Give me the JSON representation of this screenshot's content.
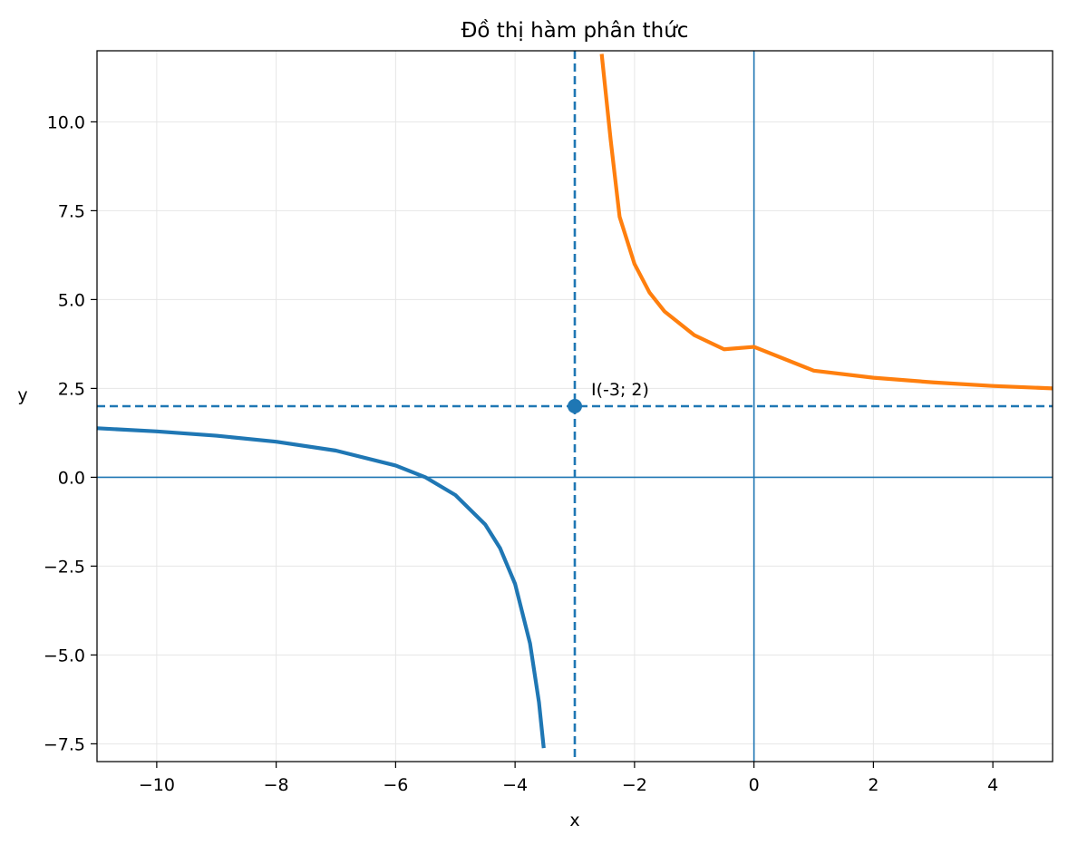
{
  "chart_data": {
    "type": "line",
    "title": "Đồ thị hàm phân thức",
    "xlabel": "x",
    "ylabel": "y",
    "xlim": [
      -11,
      5
    ],
    "ylim": [
      -8,
      12
    ],
    "xticks": [
      -10,
      -8,
      -6,
      -4,
      -2,
      0,
      2,
      4
    ],
    "xtick_labels": [
      "−10",
      "−8",
      "−6",
      "−4",
      "−2",
      "0",
      "2",
      "4"
    ],
    "yticks": [
      -7.5,
      -5.0,
      -2.5,
      0.0,
      2.5,
      5.0,
      7.5,
      10.0
    ],
    "ytick_labels": [
      "−7.5",
      "−5.0",
      "−2.5",
      "0.0",
      "2.5",
      "5.0",
      "7.5",
      "10.0"
    ],
    "grid": true,
    "series": [
      {
        "branch": "left",
        "color": "#1f77b4",
        "x": [
          -11,
          -10,
          -9,
          -8,
          -7,
          -6,
          -5.5,
          -5,
          -4.5,
          -4.25,
          -4,
          -3.75,
          -3.6,
          -3.52
        ],
        "y": [
          1.38,
          1.29,
          1.17,
          1.0,
          0.75,
          0.33,
          0.0,
          -0.5,
          -1.33,
          -2.0,
          -3.0,
          -4.67,
          -6.33,
          -7.62
        ]
      },
      {
        "branch": "right",
        "color": "#ff7f0e",
        "x": [
          -2.55,
          -2.4,
          -2.25,
          -2,
          -1.75,
          -1.5,
          -1,
          -0.5,
          0,
          1,
          2,
          3,
          4,
          5
        ],
        "y": [
          11.91,
          9.5,
          7.33,
          6.0,
          5.2,
          4.67,
          4.0,
          3.6,
          3.67,
          3.0,
          2.8,
          2.67,
          2.57,
          2.5
        ]
      }
    ],
    "asymptotes": {
      "vertical_x": -3,
      "horizontal_y": 2,
      "style": "dashed",
      "color": "#1f77b4"
    },
    "axes_lines": {
      "x_axis_y": 0,
      "y_axis_x": 0,
      "color": "#1f77b4"
    },
    "point": {
      "x": -3,
      "y": 2,
      "label": "I(-3; 2)",
      "color": "#1f77b4"
    }
  }
}
